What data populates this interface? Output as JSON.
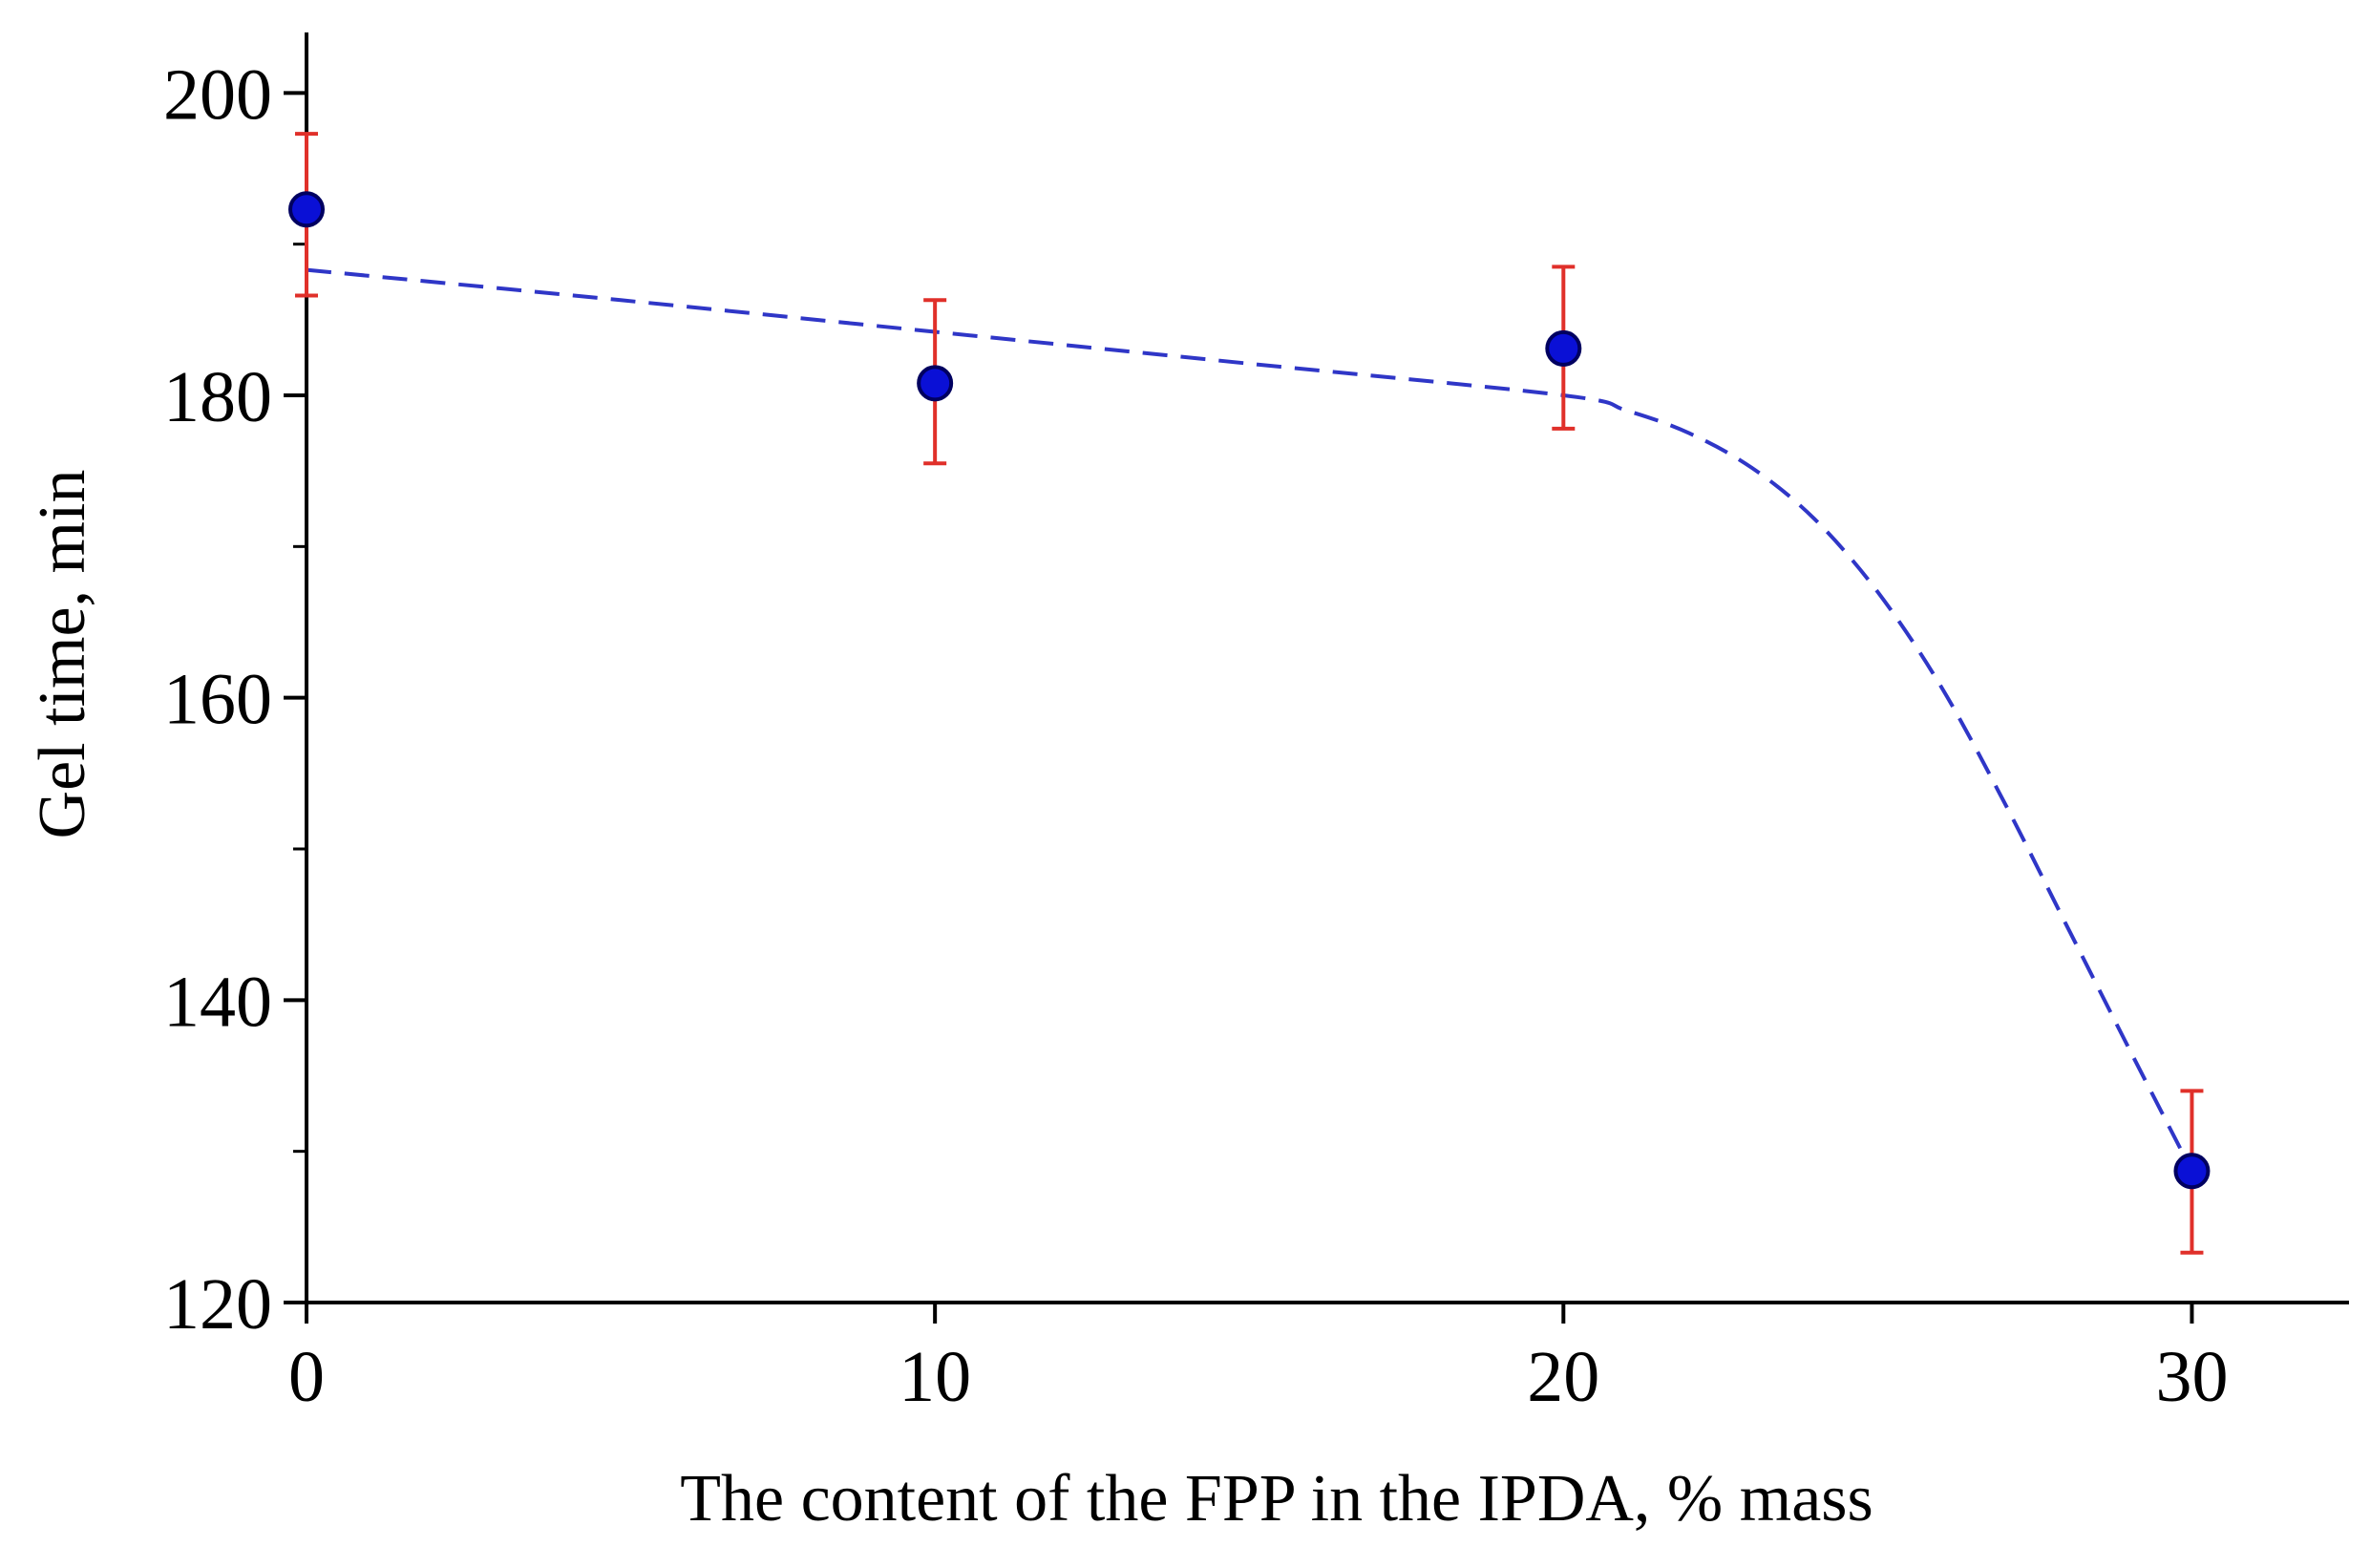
{
  "chart_data": {
    "type": "scatter",
    "title": "",
    "xlabel": "The content of the FPP in the IPDA, % mass",
    "ylabel": "Gel time, min",
    "xlim": [
      0,
      32.5
    ],
    "ylim": [
      120,
      204
    ],
    "x_ticks": [
      0,
      10,
      20,
      30
    ],
    "x_tick_labels": [
      "0",
      "10",
      "20",
      "30"
    ],
    "y_major_ticks": [
      120,
      140,
      160,
      180,
      200
    ],
    "y_tick_labels": [
      "120",
      "140",
      "160",
      "180",
      "200"
    ],
    "y_minor_ticks": [
      130,
      150,
      170,
      190
    ],
    "grid": false,
    "series": [
      {
        "name": "Gel time",
        "type": "scatter",
        "x": [
          0,
          10,
          20,
          30
        ],
        "y": [
          192.3,
          180.8,
          183.1,
          128.7
        ],
        "y_err_low": [
          186.6,
          175.5,
          177.8,
          123.3
        ],
        "y_err_high": [
          197.3,
          186.3,
          188.5,
          134.0
        ]
      },
      {
        "name": "Fit",
        "type": "line",
        "style": "dashed",
        "x": [
          0,
          5,
          10,
          15,
          20,
          21,
          22,
          23,
          24,
          25,
          26,
          27,
          28,
          29,
          30
        ],
        "y": [
          188.3,
          186.3,
          184.2,
          182.1,
          180.0,
          179.0,
          177.5,
          175.2,
          171.8,
          167.0,
          160.8,
          153.2,
          145.0,
          136.8,
          128.7
        ]
      }
    ],
    "colors": {
      "axis": "#000000",
      "marker_fill": "#0a10d6",
      "marker_edge": "#000060",
      "error_bar": "#e0302a",
      "fit_line": "#2f36c7"
    }
  }
}
